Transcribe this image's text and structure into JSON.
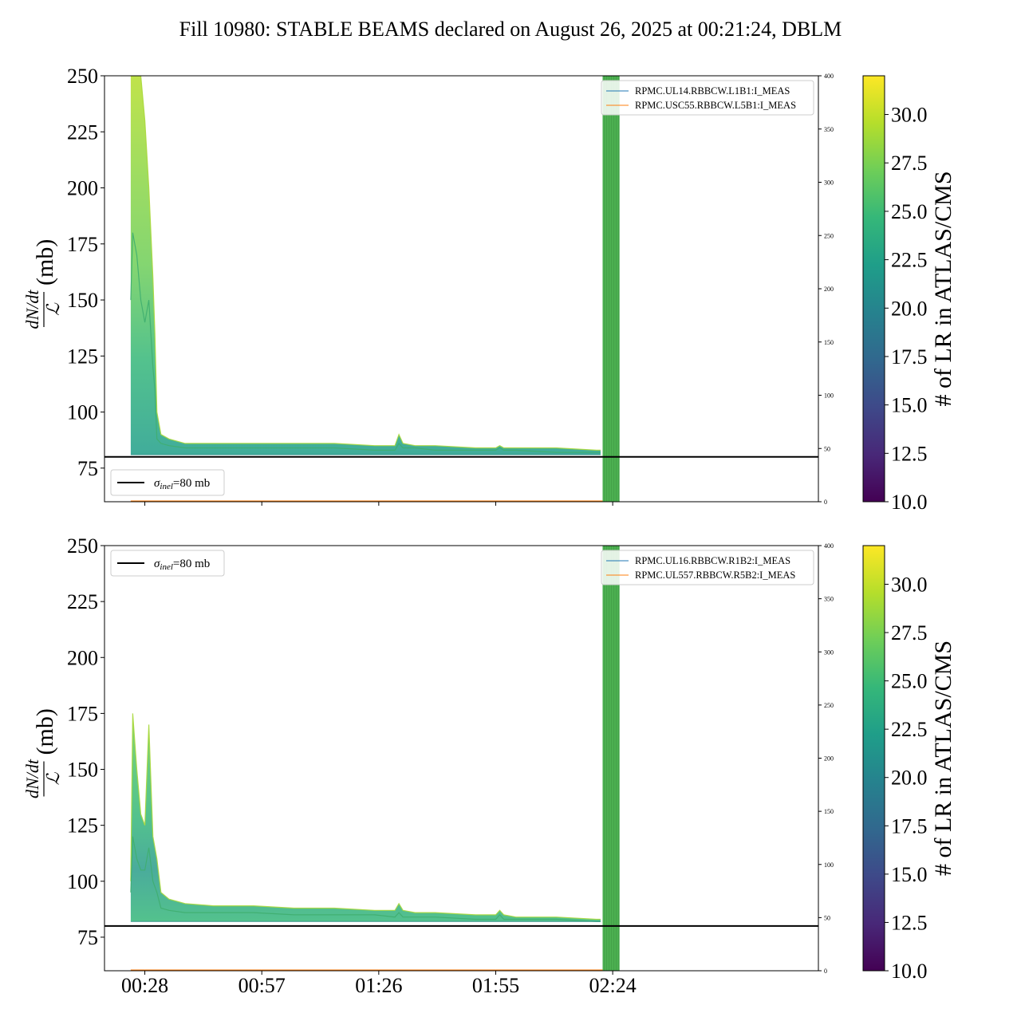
{
  "title": "Fill 10980: STABLE BEAMS declared on August 26, 2025 at 00:21:24, DBLM",
  "colors": {
    "viridis": [
      "#440154",
      "#482878",
      "#3e4989",
      "#31688e",
      "#26828e",
      "#1f9e89",
      "#35b779",
      "#6ece58",
      "#b5de2b",
      "#fde725"
    ],
    "legend_line_1": "#1f77b4",
    "legend_line_2": "#ff7f0e",
    "sigma_line": "#000000",
    "band_color": "#4cb050"
  },
  "chart_data": [
    {
      "type": "line",
      "panel": "top",
      "ylabel": "(mb)",
      "ylabel_fraction": {
        "numerator": "dN/dt",
        "denominator": "ℒ"
      },
      "ylim": [
        60,
        250
      ],
      "yticks": [
        75,
        100,
        125,
        150,
        175,
        200,
        225,
        250
      ],
      "xlim_minutes": [
        18,
        195
      ],
      "xticks": [
        {
          "label": "00:28",
          "minute": 28
        },
        {
          "label": "00:57",
          "minute": 57
        },
        {
          "label": "01:26",
          "minute": 86
        },
        {
          "label": "01:55",
          "minute": 115
        },
        {
          "label": "02:24",
          "minute": 144
        }
      ],
      "xtick_labels_visible": false,
      "right_axis": {
        "ylim": [
          0,
          400
        ],
        "yticks": [
          0,
          50,
          100,
          150,
          200,
          250,
          300,
          350,
          400
        ]
      },
      "sigma_line": {
        "value": 80,
        "label": "σ",
        "label_sub": "inel",
        "label_rest": "=80 mb",
        "legend_position": "lower-left"
      },
      "legend": {
        "position": "top-right",
        "entries": [
          "RPMC.UL14.RBBCW.L1B1:I_MEAS",
          "RPMC.USC55.RBBCW.L5B1:I_MEAS"
        ]
      },
      "band": {
        "x_start": 141.5,
        "x_end": 145.7,
        "y_top": 400
      },
      "envelope": {
        "x": [
          24.5,
          25,
          26,
          27,
          28,
          29,
          30,
          30.5,
          31,
          32,
          34,
          38,
          45,
          55,
          65,
          75,
          85,
          90,
          91,
          92,
          95,
          100,
          110,
          115,
          116,
          117,
          120,
          130,
          140,
          141
        ],
        "upper": [
          250,
          250,
          250,
          250,
          230,
          200,
          160,
          135,
          100,
          90,
          88,
          86,
          86,
          86,
          86,
          86,
          85,
          85,
          90,
          86,
          85,
          85,
          84,
          84,
          85,
          84,
          84,
          84,
          83,
          83
        ],
        "mid": [
          150,
          180,
          170,
          150,
          140,
          150,
          120,
          110,
          88,
          86,
          85,
          84,
          84,
          84,
          84,
          84,
          83,
          83,
          86,
          84,
          84,
          83,
          83,
          83,
          84,
          83,
          83,
          82,
          82,
          82
        ],
        "lower": [
          81,
          81,
          81,
          81,
          81,
          81,
          81,
          81,
          81,
          81,
          81,
          81,
          81,
          81,
          81,
          81,
          81,
          81,
          81,
          81,
          81,
          81,
          81,
          81,
          81,
          81,
          81,
          81,
          81,
          81
        ]
      },
      "colorbar": {
        "label": "# of LR in ATLAS/CMS",
        "range": [
          10,
          32
        ],
        "ticks": [
          "10.0",
          "12.5",
          "15.0",
          "17.5",
          "20.0",
          "22.5",
          "25.0",
          "27.5",
          "30.0"
        ],
        "tick_values": [
          10,
          12.5,
          15,
          17.5,
          20,
          22.5,
          25,
          27.5,
          30
        ]
      }
    },
    {
      "type": "line",
      "panel": "bottom",
      "ylabel": "(mb)",
      "ylabel_fraction": {
        "numerator": "dN/dt",
        "denominator": "ℒ"
      },
      "ylim": [
        60,
        250
      ],
      "yticks": [
        75,
        100,
        125,
        150,
        175,
        200,
        225,
        250
      ],
      "xlim_minutes": [
        18,
        195
      ],
      "xticks": [
        {
          "label": "00:28",
          "minute": 28
        },
        {
          "label": "00:57",
          "minute": 57
        },
        {
          "label": "01:26",
          "minute": 86
        },
        {
          "label": "01:55",
          "minute": 115
        },
        {
          "label": "02:24",
          "minute": 144
        }
      ],
      "xtick_labels_visible": true,
      "right_axis": {
        "ylim": [
          0,
          400
        ],
        "yticks": [
          0,
          50,
          100,
          150,
          200,
          250,
          300,
          350,
          400
        ]
      },
      "sigma_line": {
        "value": 80,
        "label": "σ",
        "label_sub": "inel",
        "label_rest": "=80 mb",
        "legend_position": "upper-left"
      },
      "legend": {
        "position": "top-right",
        "entries": [
          "RPMC.UL16.RBBCW.R1B2:I_MEAS",
          "RPMC.UL557.RBBCW.R5B2:I_MEAS"
        ]
      },
      "band": {
        "x_start": 141.5,
        "x_end": 145.7,
        "y_top": 400
      },
      "envelope": {
        "x": [
          24.5,
          25,
          26,
          27,
          28,
          29,
          30,
          31,
          32,
          34,
          38,
          45,
          55,
          65,
          75,
          85,
          90,
          91,
          92,
          95,
          100,
          110,
          115,
          116,
          117,
          120,
          130,
          140,
          141
        ],
        "upper": [
          100,
          175,
          150,
          130,
          125,
          170,
          120,
          110,
          95,
          92,
          90,
          89,
          89,
          88,
          88,
          87,
          87,
          90,
          87,
          86,
          86,
          85,
          85,
          87,
          85,
          84,
          84,
          83,
          83
        ],
        "mid": [
          95,
          120,
          110,
          105,
          105,
          115,
          100,
          95,
          88,
          87,
          86,
          86,
          86,
          85,
          85,
          85,
          84,
          86,
          84,
          84,
          84,
          83,
          83,
          85,
          83,
          83,
          83,
          82,
          82
        ],
        "lower": [
          82,
          82,
          82,
          82,
          82,
          82,
          82,
          82,
          82,
          82,
          82,
          82,
          82,
          82,
          82,
          82,
          82,
          82,
          82,
          82,
          82,
          82,
          82,
          82,
          82,
          82,
          82,
          82,
          82
        ]
      },
      "colorbar": {
        "label": "# of LR in ATLAS/CMS",
        "range": [
          10,
          32
        ],
        "ticks": [
          "10.0",
          "12.5",
          "15.0",
          "17.5",
          "20.0",
          "22.5",
          "25.0",
          "27.5",
          "30.0"
        ],
        "tick_values": [
          10,
          12.5,
          15,
          17.5,
          20,
          22.5,
          25,
          27.5,
          30
        ]
      }
    }
  ]
}
